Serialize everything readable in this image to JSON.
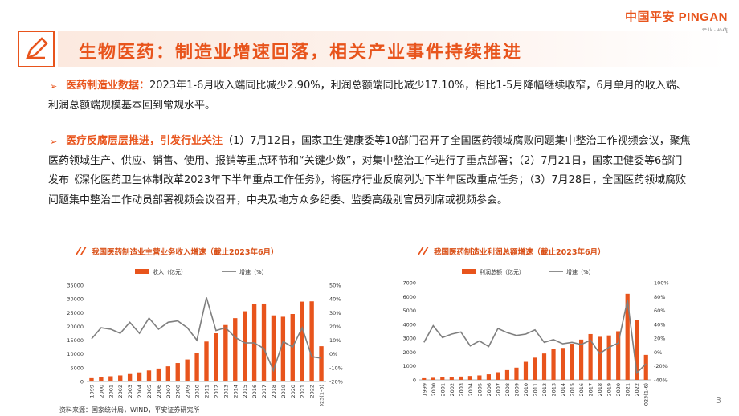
{
  "logo": {
    "main": "中国平安 PINGAN",
    "sub": "专业 · 价值"
  },
  "title": "生物医药：制造业增速回落，相关产业事件持续推进",
  "paragraphs": [
    {
      "bullet": "➢",
      "highlight": "医药制造业数据：",
      "text": "2023年1-6月收入端同比减少2.90%，利润总额端同比减少17.10%，相比1-5月降幅继续收窄，6月单月的收入端、利润总额端规模基本回到常规水平。"
    },
    {
      "bullet": "➢",
      "highlight": "医疗反腐层层推进，引发行业关注",
      "text": "（1）7月12日，国家卫生健康委等10部门召开了全国医药领域腐败问题集中整治工作视频会议，聚焦医药领域生产、供应、销售、使用、报销等重点环节和“关键少数”，对集中整治工作进行了重点部署；（2）7月21日，国家卫健委等6部门发布《深化医药卫生体制改革2023年下半年重点工作任务》，将医疗行业反腐列为下半年医改重点任务；（3）7月28日，全国医药领域腐败问题集中整治工作动员部署视频会议召开，中央及地方众多纪委、监委高级别官员列席或视频参会。"
    }
  ],
  "source": "资料来源：国家统计局，WIND，平安证券研究所",
  "page_number": "3",
  "colors": {
    "accent": "#e8541c",
    "line": "#7f7f7f"
  },
  "chart_data": [
    {
      "type": "bar",
      "title": "我国医药制造业主营业务收入增速（截止2023年6月）",
      "categories": [
        "1999",
        "2000",
        "2001",
        "2002",
        "2003",
        "2004",
        "2005",
        "2006",
        "2007",
        "2008",
        "2009",
        "2010",
        "2011",
        "2012",
        "2013",
        "2014",
        "2015",
        "2016",
        "2017",
        "2018",
        "2019",
        "2020",
        "2021",
        "2022",
        "2023(1-6)"
      ],
      "series": [
        {
          "name": "收入（亿元）",
          "type": "bar",
          "axis": "left",
          "values": [
            1200,
            1600,
            1900,
            2200,
            2700,
            3300,
            4000,
            4700,
            5500,
            6700,
            8000,
            10500,
            14500,
            17500,
            20500,
            23000,
            25500,
            28000,
            28300,
            24000,
            23500,
            24500,
            29000,
            29100,
            12800
          ]
        },
        {
          "name": "增速（%）",
          "type": "line",
          "axis": "right",
          "values": [
            11,
            19,
            18,
            15,
            23,
            15,
            26,
            18,
            23,
            24,
            19,
            10,
            41,
            17,
            19,
            12,
            8,
            8,
            4,
            -12,
            9,
            5,
            19,
            -2,
            -3
          ]
        }
      ],
      "ylim_left": [
        0,
        35000
      ],
      "yticks_left": [
        "0",
        "5000",
        "10000",
        "15000",
        "20000",
        "25000",
        "30000",
        "35000"
      ],
      "ylim_right": [
        -20,
        50
      ],
      "yticks_right": [
        "-20%",
        "-10%",
        "0%",
        "10%",
        "20%",
        "30%",
        "40%",
        "50%"
      ],
      "legend": "top"
    },
    {
      "type": "bar",
      "title": "我国医药制造业利润总额增速（截止2023年6月）",
      "categories": [
        "1999",
        "2000",
        "2001",
        "2002",
        "2003",
        "2004",
        "2005",
        "2006",
        "2007",
        "2008",
        "2009",
        "2010",
        "2011",
        "2012",
        "2013",
        "2014",
        "2015",
        "2016",
        "2017",
        "2018",
        "2019",
        "2020",
        "2021",
        "2022",
        "2023(1-6)"
      ],
      "series": [
        {
          "name": "利润总额（亿元）",
          "type": "bar",
          "axis": "left",
          "values": [
            120,
            150,
            180,
            200,
            240,
            280,
            320,
            400,
            550,
            700,
            880,
            1300,
            1600,
            1900,
            2200,
            2300,
            2600,
            2900,
            3300,
            3100,
            3200,
            3500,
            6200,
            4300,
            1800
          ]
        },
        {
          "name": "增速（%）",
          "type": "line",
          "axis": "right",
          "values": [
            14,
            38,
            21,
            26,
            29,
            9,
            16,
            8,
            34,
            28,
            24,
            26,
            32,
            14,
            18,
            12,
            14,
            11,
            17,
            -2,
            7,
            13,
            75,
            -30,
            -17
          ]
        }
      ],
      "ylim_left": [
        0,
        7000
      ],
      "yticks_left": [
        "0",
        "1000",
        "2000",
        "3000",
        "4000",
        "5000",
        "6000",
        "7000"
      ],
      "ylim_right": [
        -40,
        100
      ],
      "yticks_right": [
        "-40%",
        "-20%",
        "0%",
        "20%",
        "40%",
        "60%",
        "80%",
        "100%"
      ],
      "legend": "top"
    }
  ]
}
